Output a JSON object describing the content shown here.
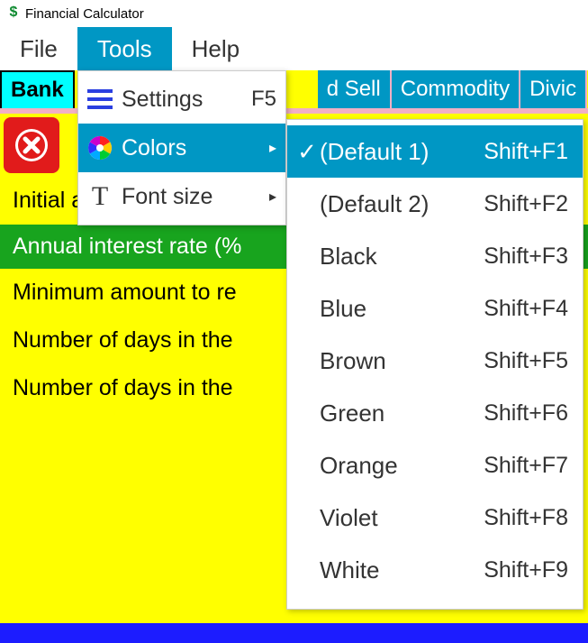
{
  "window": {
    "title": "Financial Calculator"
  },
  "menubar": {
    "file": "File",
    "tools": "Tools",
    "help": "Help"
  },
  "tabs": {
    "bank": "Bank",
    "sell_fragment": "d Sell",
    "commodity": "Commodity",
    "dividend_fragment": "Divic"
  },
  "fields": {
    "initial_amount": "Initial amount",
    "annual_interest_rate": "Annual interest rate (%",
    "minimum_amount": "Minimum amount to re",
    "days_in_1": "Number of days in the",
    "days_in_2": "Number of days in the"
  },
  "tools_menu": {
    "settings": {
      "label": "Settings",
      "shortcut": "F5"
    },
    "colors": {
      "label": "Colors"
    },
    "fontsize": {
      "label": "Font size"
    }
  },
  "colors_menu": [
    {
      "label": "(Default 1)",
      "shortcut": "Shift+F1",
      "checked": true,
      "active": true
    },
    {
      "label": "(Default 2)",
      "shortcut": "Shift+F2",
      "checked": false,
      "active": false
    },
    {
      "label": "Black",
      "shortcut": "Shift+F3",
      "checked": false,
      "active": false
    },
    {
      "label": "Blue",
      "shortcut": "Shift+F4",
      "checked": false,
      "active": false
    },
    {
      "label": "Brown",
      "shortcut": "Shift+F5",
      "checked": false,
      "active": false
    },
    {
      "label": "Green",
      "shortcut": "Shift+F6",
      "checked": false,
      "active": false
    },
    {
      "label": "Orange",
      "shortcut": "Shift+F7",
      "checked": false,
      "active": false
    },
    {
      "label": "Violet",
      "shortcut": "Shift+F8",
      "checked": false,
      "active": false
    },
    {
      "label": "White",
      "shortcut": "Shift+F9",
      "checked": false,
      "active": false
    }
  ],
  "colors": {
    "accent": "#0097c4",
    "body_bg": "#ffff00",
    "tab_inactive_bg": "#0097c4",
    "tab_active_bg": "#00ffff",
    "pink_strip": "#f2b0c4",
    "green_row": "#18a41e",
    "red_btn": "#e11b1b",
    "bottom_bar": "#1c1cff"
  }
}
